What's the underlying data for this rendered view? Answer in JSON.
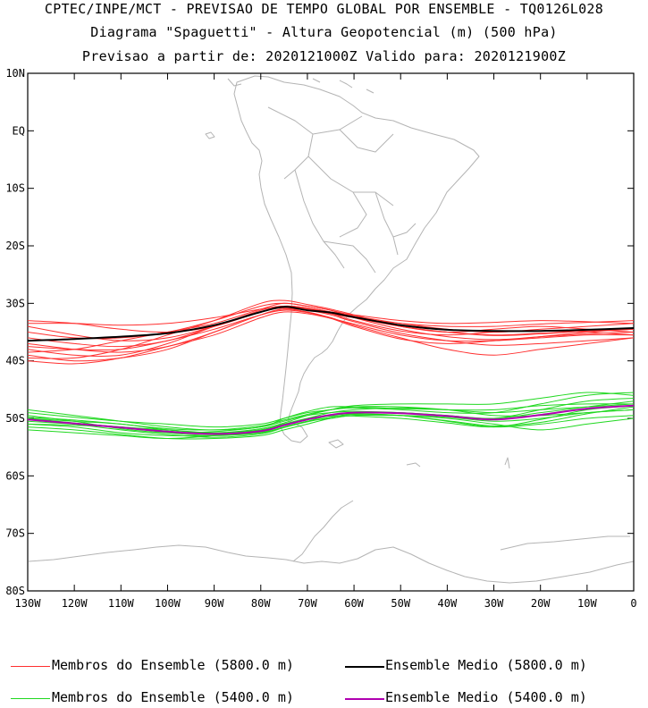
{
  "header": {
    "line1": "CPTEC/INPE/MCT - PREVISAO DE TEMPO GLOBAL POR ENSEMBLE - TQ0126L028",
    "line2": "Diagrama \"Spaguetti\" - Altura Geopotencial (m) (500 hPa)",
    "line3": "Previsao a partir de: 2020121000Z  Valido para: 2020121900Z"
  },
  "chart_data": {
    "type": "line",
    "title": "Diagrama \"Spaguetti\" - Altura Geopotencial (m) (500 hPa)",
    "xlim": [
      -130,
      0
    ],
    "ylim": [
      -80,
      10
    ],
    "x_ticks": [
      {
        "value": -130,
        "label": "130W"
      },
      {
        "value": -120,
        "label": "120W"
      },
      {
        "value": -110,
        "label": "110W"
      },
      {
        "value": -100,
        "label": "100W"
      },
      {
        "value": -90,
        "label": "90W"
      },
      {
        "value": -80,
        "label": "80W"
      },
      {
        "value": -70,
        "label": "70W"
      },
      {
        "value": -60,
        "label": "60W"
      },
      {
        "value": -50,
        "label": "50W"
      },
      {
        "value": -40,
        "label": "40W"
      },
      {
        "value": -30,
        "label": "30W"
      },
      {
        "value": -20,
        "label": "20W"
      },
      {
        "value": -10,
        "label": "10W"
      },
      {
        "value": 0,
        "label": "0"
      }
    ],
    "y_ticks": [
      {
        "value": 10,
        "label": "10N"
      },
      {
        "value": 0,
        "label": "EQ"
      },
      {
        "value": -10,
        "label": "10S"
      },
      {
        "value": -20,
        "label": "20S"
      },
      {
        "value": -30,
        "label": "30S"
      },
      {
        "value": -40,
        "label": "40S"
      },
      {
        "value": -50,
        "label": "50S"
      },
      {
        "value": -60,
        "label": "60S"
      },
      {
        "value": -70,
        "label": "70S"
      },
      {
        "value": -80,
        "label": "80S"
      }
    ],
    "x": [
      -130,
      -120,
      -110,
      -100,
      -90,
      -80,
      -75,
      -70,
      -65,
      -60,
      -50,
      -40,
      -30,
      -20,
      -10,
      0
    ],
    "series": [
      {
        "name": "Membros do Ensemble (5800.0 m)",
        "color": "#ff3030",
        "group": "members",
        "members": [
          [
            -33.5,
            -33.5,
            -33.8,
            -33.5,
            -32.5,
            -31.0,
            -30.5,
            -31.0,
            -31.8,
            -32.5,
            -33.5,
            -34.0,
            -34.0,
            -33.6,
            -33.3,
            -33.0
          ],
          [
            -33.0,
            -33.5,
            -34.5,
            -35.0,
            -34.0,
            -31.5,
            -30.8,
            -31.0,
            -31.5,
            -32.0,
            -33.0,
            -33.5,
            -33.3,
            -33.0,
            -33.2,
            -33.5
          ],
          [
            -34.0,
            -35.5,
            -36.5,
            -36.0,
            -34.0,
            -31.5,
            -30.5,
            -30.8,
            -31.5,
            -32.5,
            -34.0,
            -35.0,
            -35.5,
            -35.2,
            -34.8,
            -34.5
          ],
          [
            -35.0,
            -36.0,
            -36.0,
            -35.0,
            -33.0,
            -30.5,
            -30.0,
            -30.5,
            -31.2,
            -32.5,
            -34.5,
            -35.8,
            -36.3,
            -35.8,
            -35.3,
            -35.0
          ],
          [
            -36.0,
            -37.0,
            -37.5,
            -36.5,
            -34.0,
            -31.2,
            -30.5,
            -31.0,
            -31.8,
            -33.0,
            -34.8,
            -35.5,
            -35.0,
            -34.8,
            -35.0,
            -35.5
          ],
          [
            -37.0,
            -38.0,
            -38.5,
            -37.5,
            -35.0,
            -32.0,
            -31.0,
            -31.2,
            -32.0,
            -33.2,
            -35.2,
            -36.5,
            -37.3,
            -37.0,
            -36.5,
            -36.0
          ],
          [
            -38.0,
            -39.0,
            -39.0,
            -37.0,
            -34.0,
            -31.5,
            -30.5,
            -30.8,
            -31.5,
            -32.2,
            -33.5,
            -34.5,
            -35.0,
            -34.5,
            -34.0,
            -33.5
          ],
          [
            -39.0,
            -40.0,
            -39.5,
            -38.0,
            -35.0,
            -32.0,
            -31.0,
            -31.5,
            -32.5,
            -33.8,
            -36.0,
            -38.0,
            -39.0,
            -38.0,
            -37.0,
            -36.0
          ],
          [
            -40.0,
            -40.5,
            -39.5,
            -37.5,
            -35.5,
            -32.5,
            -31.5,
            -31.8,
            -32.6,
            -33.6,
            -35.5,
            -36.5,
            -36.5,
            -36.0,
            -35.5,
            -35.5
          ],
          [
            -38.5,
            -38.0,
            -36.5,
            -35.0,
            -33.5,
            -31.0,
            -30.0,
            -30.5,
            -31.2,
            -32.2,
            -34.0,
            -35.0,
            -34.5,
            -34.0,
            -34.5,
            -35.0
          ],
          [
            -39.5,
            -39.5,
            -38.0,
            -35.5,
            -33.0,
            -30.0,
            -29.5,
            -30.2,
            -31.0,
            -32.0,
            -34.0,
            -35.0,
            -35.6,
            -35.3,
            -34.8,
            -34.5
          ],
          [
            -37.5,
            -38.0,
            -38.0,
            -36.5,
            -34.5,
            -32.0,
            -31.2,
            -31.6,
            -32.6,
            -34.0,
            -36.2,
            -37.0,
            -36.5,
            -35.8,
            -35.0,
            -34.5
          ]
        ]
      },
      {
        "name": "Ensemble Medio (5800.0 m)",
        "color": "#000000",
        "group": "mean",
        "values": [
          -36.5,
          -36.2,
          -35.8,
          -35.2,
          -33.8,
          -31.5,
          -30.6,
          -31.2,
          -31.6,
          -32.4,
          -33.8,
          -34.6,
          -34.8,
          -34.8,
          -34.6,
          -34.3
        ]
      },
      {
        "name": "Membros do Ensemble (5400.0 m)",
        "color": "#20d820",
        "group": "members",
        "members": [
          [
            -50.0,
            -50.8,
            -51.5,
            -52.0,
            -52.5,
            -52.0,
            -51.0,
            -50.0,
            -49.0,
            -48.5,
            -48.2,
            -48.5,
            -49.0,
            -48.5,
            -48.0,
            -47.5
          ],
          [
            -50.5,
            -51.0,
            -51.5,
            -52.5,
            -53.0,
            -52.5,
            -51.5,
            -50.5,
            -49.5,
            -49.0,
            -49.0,
            -49.5,
            -50.0,
            -49.0,
            -48.0,
            -47.0
          ],
          [
            -49.0,
            -49.8,
            -50.5,
            -51.0,
            -51.5,
            -51.0,
            -50.0,
            -49.0,
            -48.5,
            -48.0,
            -48.0,
            -48.5,
            -49.5,
            -49.5,
            -49.0,
            -48.5
          ],
          [
            -51.0,
            -51.5,
            -52.5,
            -53.0,
            -53.0,
            -52.5,
            -51.5,
            -50.5,
            -50.0,
            -49.5,
            -49.5,
            -50.0,
            -51.0,
            -52.0,
            -51.0,
            -50.0
          ],
          [
            -48.5,
            -49.5,
            -50.5,
            -51.5,
            -52.0,
            -51.5,
            -50.0,
            -48.8,
            -48.0,
            -48.0,
            -48.3,
            -48.5,
            -48.5,
            -47.8,
            -47.5,
            -47.5
          ],
          [
            -51.5,
            -52.0,
            -52.8,
            -53.5,
            -53.5,
            -53.0,
            -52.0,
            -51.0,
            -50.0,
            -49.5,
            -49.5,
            -49.8,
            -50.5,
            -50.0,
            -49.0,
            -48.5
          ],
          [
            -50.0,
            -50.5,
            -51.0,
            -52.0,
            -52.5,
            -51.8,
            -50.8,
            -49.5,
            -48.5,
            -47.8,
            -47.5,
            -47.5,
            -47.5,
            -46.5,
            -45.5,
            -46.0
          ],
          [
            -49.5,
            -50.5,
            -51.8,
            -52.5,
            -52.3,
            -51.5,
            -50.5,
            -49.5,
            -49.0,
            -48.8,
            -49.0,
            -49.5,
            -50.0,
            -48.5,
            -47.0,
            -46.5
          ],
          [
            -52.0,
            -52.5,
            -53.0,
            -53.5,
            -53.0,
            -52.0,
            -51.0,
            -50.0,
            -49.5,
            -49.2,
            -49.5,
            -50.5,
            -51.5,
            -51.0,
            -50.0,
            -49.5
          ],
          [
            -50.2,
            -51.0,
            -52.0,
            -52.8,
            -53.3,
            -52.7,
            -51.6,
            -50.6,
            -49.8,
            -49.3,
            -49.5,
            -50.4,
            -51.3,
            -50.7,
            -49.2,
            -48.0
          ],
          [
            -49.8,
            -50.3,
            -51.0,
            -51.8,
            -52.0,
            -51.3,
            -50.3,
            -49.3,
            -48.5,
            -48.2,
            -48.5,
            -49.0,
            -49.0,
            -47.5,
            -46.0,
            -45.5
          ],
          [
            -51.0,
            -51.2,
            -51.5,
            -52.2,
            -52.8,
            -52.4,
            -51.2,
            -50.2,
            -49.6,
            -49.6,
            -50.0,
            -50.8,
            -51.5,
            -50.2,
            -48.5,
            -47.8
          ]
        ]
      },
      {
        "name": "Ensemble Medio (5400.0 m)",
        "color": "#b000b0",
        "group": "mean",
        "values": [
          -50.2,
          -50.9,
          -51.6,
          -52.3,
          -52.7,
          -52.2,
          -51.2,
          -50.2,
          -49.4,
          -49.0,
          -49.1,
          -49.6,
          -50.2,
          -49.4,
          -48.3,
          -47.8
        ]
      }
    ],
    "legend": {
      "placement": "bottom",
      "items": [
        {
          "label": "Membros do Ensemble (5800.0 m)",
          "color": "#ff3030"
        },
        {
          "label": "Ensemble Medio (5800.0 m)",
          "color": "#000000"
        },
        {
          "label": "Membros do Ensemble (5400.0 m)",
          "color": "#20d820"
        },
        {
          "label": "Ensemble Medio (5400.0 m)",
          "color": "#b000b0"
        }
      ]
    },
    "grid": false,
    "background_map": "gray-coastlines",
    "map_color": "#b4b4b4"
  }
}
